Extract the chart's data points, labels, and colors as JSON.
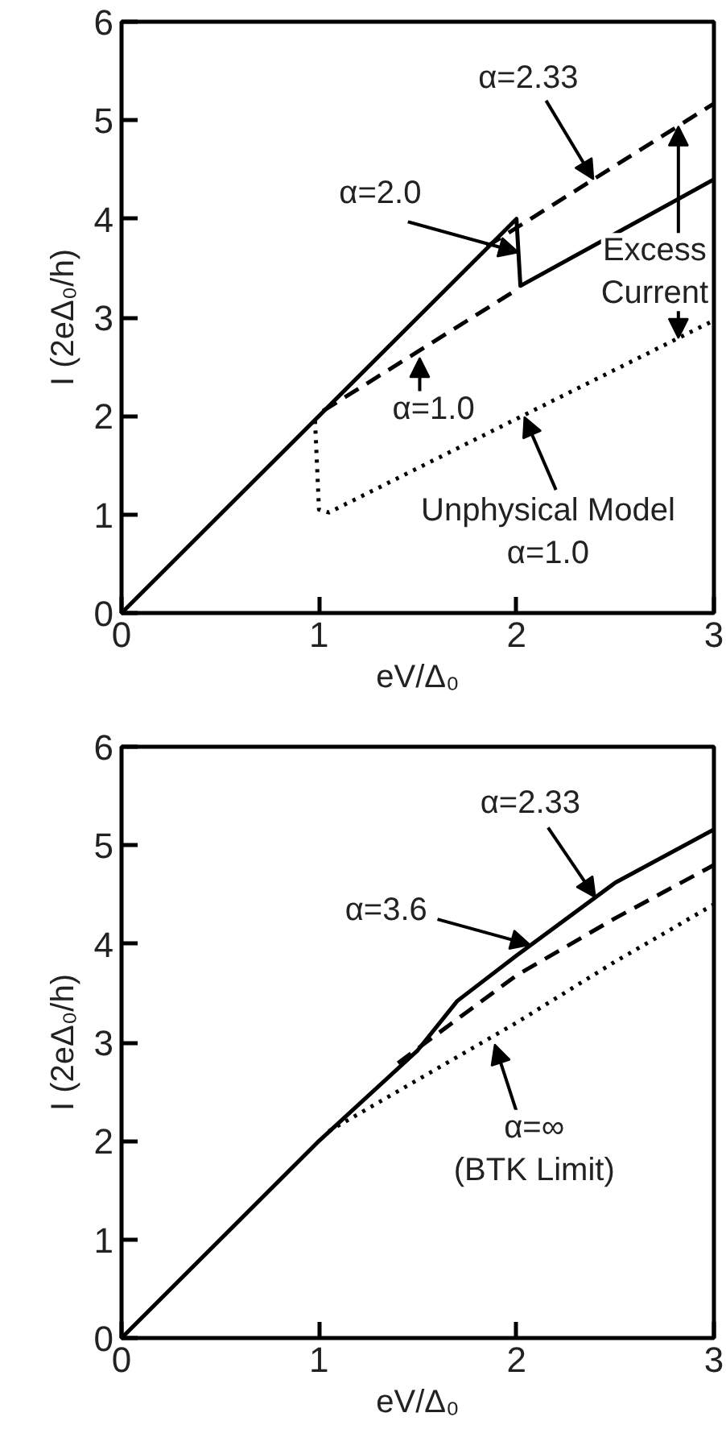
{
  "chart_data": [
    {
      "type": "line",
      "xlabel": "eV/Δ₀",
      "ylabel": "I (2eΔ₀/h)",
      "xlim": [
        0,
        3
      ],
      "ylim": [
        0,
        6
      ],
      "xticks": [
        0,
        1,
        2,
        3
      ],
      "yticks": [
        0,
        1,
        2,
        3,
        4,
        5,
        6
      ],
      "marker": "none",
      "series": [
        {
          "color": "#000000",
          "line_style": "solid",
          "x": [
            0,
            2,
            2.02,
            3
          ],
          "values": [
            0,
            4,
            3.32,
            4.4
          ]
        },
        {
          "color": "#000000",
          "line_style": "dashed",
          "x": [
            1.85,
            3
          ],
          "values": [
            3.72,
            5.17
          ]
        },
        {
          "color": "#000000",
          "line_style": "dashed",
          "x": [
            1.02,
            2
          ],
          "values": [
            2.05,
            3.28
          ]
        },
        {
          "color": "#000000",
          "line_style": "dotted",
          "x": [
            0.98,
            1.0,
            1.05,
            3
          ],
          "values": [
            1.95,
            1.05,
            1.02,
            2.97
          ]
        }
      ],
      "annotations": [
        {
          "text": "α=2.33",
          "x": 2.39,
          "y": 4.4
        },
        {
          "text": "α=2.0",
          "x": 2.01,
          "y": 3.66
        },
        {
          "text": "α=1.0",
          "x": 1.51,
          "y": 2.59
        },
        {
          "text": "Excess\nCurrent",
          "x": 2.82,
          "y": 4.94
        },
        {
          "text": "Unphysical Model\nα=1.0",
          "x": 2.04,
          "y": 1.99
        }
      ]
    },
    {
      "type": "line",
      "xlabel": "eV/Δ₀",
      "ylabel": "I (2eΔ₀/h)",
      "xlim": [
        0,
        3
      ],
      "ylim": [
        0,
        6
      ],
      "xticks": [
        0,
        1,
        2,
        3
      ],
      "yticks": [
        0,
        1,
        2,
        3,
        4,
        5,
        6
      ],
      "marker": "none",
      "series": [
        {
          "color": "#000000",
          "line_style": "solid",
          "x": [
            0,
            1,
            1.5,
            1.7,
            2,
            2.5,
            3
          ],
          "values": [
            0,
            2,
            2.92,
            3.42,
            3.88,
            4.62,
            5.16
          ]
        },
        {
          "color": "#000000",
          "line_style": "dashed",
          "x": [
            1.4,
            2,
            2.5,
            3
          ],
          "values": [
            2.79,
            3.68,
            4.26,
            4.8
          ]
        },
        {
          "color": "#000000",
          "line_style": "dotted",
          "x": [
            1.05,
            1.5,
            2,
            2.5,
            3
          ],
          "values": [
            2.1,
            2.62,
            3.2,
            3.82,
            4.4
          ]
        }
      ],
      "annotations": [
        {
          "text": "α=2.33",
          "x": 2.4,
          "y": 4.47
        },
        {
          "text": "α=3.6",
          "x": 2.07,
          "y": 3.99
        },
        {
          "text": "α=∞\n(BTK Limit)",
          "x": 1.89,
          "y": 2.98
        }
      ]
    }
  ]
}
